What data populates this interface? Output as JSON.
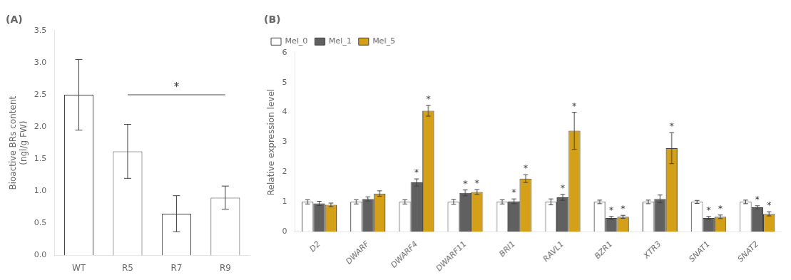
{
  "chart_data": [
    {
      "type": "bar",
      "title": "(A)",
      "categories": [
        "WT",
        "R5",
        "R7",
        "R9"
      ],
      "values": [
        2.5,
        1.62,
        0.65,
        0.9
      ],
      "errors": [
        0.55,
        0.42,
        0.28,
        0.18
      ],
      "color": "#ffffff",
      "ylabel": "Bioactive BRs content\n(ngl/g FW)",
      "ylim": [
        0,
        3.5
      ],
      "yticks": [
        {
          "value": 0,
          "label": "0.0"
        },
        0.5,
        {
          "value": 1,
          "label": "1.0"
        },
        1.5,
        {
          "value": 2,
          "label": "2.0"
        },
        2.5,
        {
          "value": 3,
          "label": "3.0"
        },
        3.5
      ],
      "annotations": [
        {
          "x1": "R5",
          "x2": "R9",
          "y": 2.5,
          "label": "*"
        }
      ],
      "grid": false
    },
    {
      "type": "bar",
      "title": "(B)",
      "categories": [
        "D2",
        "DWARF",
        "DWARF4",
        "DWARF11",
        "BRI1",
        "RAVL1",
        "BZR1",
        "XTR3",
        "SNAT1",
        "SNAT2"
      ],
      "series": [
        {
          "name": "Mel_0",
          "color": "#ffffff",
          "values": [
            1.0,
            1.0,
            1.0,
            1.0,
            1.0,
            1.0,
            1.0,
            1.0,
            1.0,
            1.0
          ],
          "errors": [
            0.07,
            0.07,
            0.07,
            0.08,
            0.07,
            0.1,
            0.06,
            0.06,
            0.05,
            0.06
          ]
        },
        {
          "name": "Mel_1",
          "color": "#606060",
          "values": [
            0.95,
            1.1,
            1.65,
            1.3,
            1.02,
            1.15,
            0.46,
            1.1,
            0.46,
            0.82
          ],
          "errors": [
            0.07,
            0.07,
            0.12,
            0.1,
            0.08,
            0.1,
            0.05,
            0.13,
            0.05,
            0.05
          ]
        },
        {
          "name": "Mel_5",
          "color": "#D4A017",
          "values": [
            0.9,
            1.28,
            4.05,
            1.33,
            1.78,
            3.38,
            0.5,
            2.8,
            0.5,
            0.6
          ],
          "errors": [
            0.06,
            0.09,
            0.18,
            0.08,
            0.13,
            0.62,
            0.05,
            0.52,
            0.06,
            0.07
          ]
        }
      ],
      "ylabel": "Relative expression level",
      "ylim": [
        0,
        6
      ],
      "yticks": [
        0,
        1,
        2,
        3,
        4,
        5,
        6
      ],
      "annotations": [
        {
          "x": "DWARF4",
          "series": "Mel_1",
          "label": "*"
        },
        {
          "x": "DWARF11",
          "series": "Mel_1",
          "label": "*"
        },
        {
          "x": "BRI1",
          "series": "Mel_1",
          "label": "*"
        },
        {
          "x": "RAVL1",
          "series": "Mel_1",
          "label": "*"
        },
        {
          "x": "BZR1",
          "series": "Mel_1",
          "label": "*"
        },
        {
          "x": "SNAT1",
          "series": "Mel_1",
          "label": "*"
        },
        {
          "x": "SNAT2",
          "series": "Mel_1",
          "label": "*"
        },
        {
          "x": "DWARF4",
          "series": "Mel_5",
          "label": "*"
        },
        {
          "x": "DWARF11",
          "series": "Mel_5",
          "label": "*"
        },
        {
          "x": "BRI1",
          "series": "Mel_5",
          "label": "*"
        },
        {
          "x": "RAVL1",
          "series": "Mel_5",
          "label": "*"
        },
        {
          "x": "BZR1",
          "series": "Mel_5",
          "label": "*"
        },
        {
          "x": "XTR3",
          "series": "Mel_5",
          "label": "*"
        },
        {
          "x": "SNAT1",
          "series": "Mel_5",
          "label": "*"
        },
        {
          "x": "SNAT2",
          "series": "Mel_5",
          "label": "*"
        }
      ],
      "legend": "upper left",
      "grid": false
    }
  ]
}
